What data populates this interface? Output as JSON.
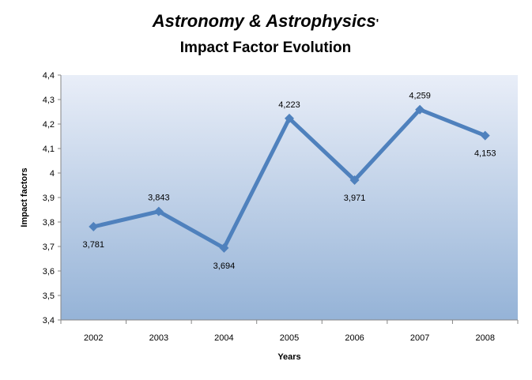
{
  "chart_data": {
    "type": "line",
    "title_main": "Astronomy & Astrophysics",
    "title_suffix": "'",
    "subtitle": "Impact Factor Evolution",
    "xlabel": "Years",
    "ylabel": "Impact factors",
    "categories": [
      "2002",
      "2003",
      "2004",
      "2005",
      "2006",
      "2007",
      "2008"
    ],
    "values": [
      3.781,
      3.843,
      3.694,
      4.223,
      3.971,
      4.259,
      4.153
    ],
    "data_labels": [
      "3,781",
      "3,843",
      "3,694",
      "4,223",
      "3,971",
      "4,259",
      "4,153"
    ],
    "ylim": [
      3.4,
      4.4
    ],
    "yticks": [
      "3,4",
      "3,5",
      "3,6",
      "3,7",
      "3,8",
      "3,9",
      "4",
      "4,1",
      "4,2",
      "4,3",
      "4,4"
    ],
    "grid": false,
    "legend": "none",
    "colors": {
      "line": "#4f81bd",
      "plot_top": "#e9eef8",
      "plot_bottom": "#95b3d7",
      "axis": "#868686"
    }
  }
}
